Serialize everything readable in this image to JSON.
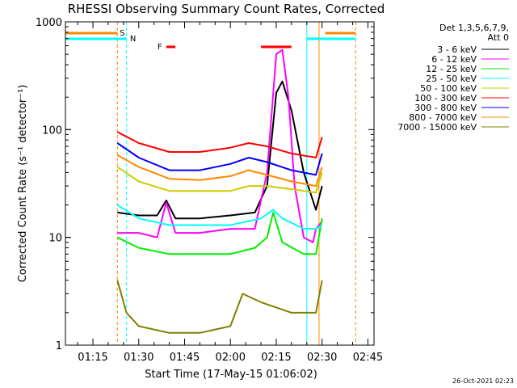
{
  "chart_data": {
    "type": "line",
    "title": "RHESSI Observing Summary Count Rates, Corrected",
    "xlabel": "Start Time (17-May-15 01:06:02)",
    "ylabel": "Corrected Count Rate (s⁻¹ detector⁻¹)",
    "y_scale": "log",
    "ylim": [
      1,
      1000
    ],
    "xlim": [
      "01:06",
      "02:47"
    ],
    "y_ticks": [
      "1",
      "10",
      "100",
      "1000"
    ],
    "x_ticks": [
      "01:15",
      "01:30",
      "01:45",
      "02:00",
      "02:15",
      "02:30",
      "02:45"
    ],
    "legend_header": [
      "Det 1,3,5,6,7,9,",
      "Att 0"
    ],
    "legend_position": "right",
    "timestamp": "26-Oct-2021 02:23",
    "series": [
      {
        "name": "3 - 6 keV",
        "color": "#000000",
        "x": [
          "01:23",
          "01:30",
          "01:36",
          "01:39",
          "01:42",
          "01:50",
          "02:00",
          "02:08",
          "02:12",
          "02:15",
          "02:17",
          "02:20",
          "02:24",
          "02:28",
          "02:30"
        ],
        "values": [
          17,
          16,
          16,
          22,
          15,
          15,
          16,
          17,
          30,
          220,
          280,
          150,
          40,
          18,
          30
        ]
      },
      {
        "name": "6 - 12 keV",
        "color": "#ff00ff",
        "x": [
          "01:23",
          "01:30",
          "01:36",
          "01:39",
          "01:42",
          "01:50",
          "02:00",
          "02:08",
          "02:12",
          "02:15",
          "02:17",
          "02:19",
          "02:21",
          "02:24",
          "02:27",
          "02:28",
          "02:30"
        ],
        "values": [
          11,
          11,
          10,
          21,
          11,
          11,
          12,
          12,
          40,
          500,
          550,
          200,
          30,
          10,
          9,
          12,
          14
        ]
      },
      {
        "name": "12 - 25 keV",
        "color": "#00ee00",
        "x": [
          "01:23",
          "01:30",
          "01:40",
          "01:50",
          "02:00",
          "02:08",
          "02:12",
          "02:14",
          "02:17",
          "02:24",
          "02:28",
          "02:30"
        ],
        "values": [
          10,
          8,
          7,
          7,
          7,
          8,
          10,
          17,
          9,
          7,
          7,
          15
        ]
      },
      {
        "name": "25 - 50 keV",
        "color": "#00ffff",
        "x": [
          "01:23",
          "01:30",
          "01:40",
          "01:50",
          "02:00",
          "02:10",
          "02:14",
          "02:17",
          "02:24",
          "02:28",
          "02:30"
        ],
        "values": [
          20,
          15,
          13,
          13,
          13,
          15,
          18,
          15,
          12,
          12,
          13
        ]
      },
      {
        "name": "50 - 100 keV",
        "color": "#cccc00",
        "x": [
          "01:23",
          "01:30",
          "01:40",
          "01:50",
          "02:00",
          "02:06",
          "02:12",
          "02:20",
          "02:28",
          "02:30"
        ],
        "values": [
          45,
          33,
          27,
          27,
          27,
          30,
          30,
          28,
          26,
          40
        ]
      },
      {
        "name": "100 - 300 keV",
        "color": "#ff0000",
        "x": [
          "01:23",
          "01:30",
          "01:40",
          "01:50",
          "02:00",
          "02:06",
          "02:12",
          "02:20",
          "02:28",
          "02:30"
        ],
        "values": [
          95,
          75,
          62,
          62,
          68,
          75,
          70,
          60,
          55,
          85
        ]
      },
      {
        "name": "300 - 800 keV",
        "color": "#0000ff",
        "x": [
          "01:23",
          "01:30",
          "01:40",
          "01:50",
          "02:00",
          "02:06",
          "02:12",
          "02:20",
          "02:28",
          "02:30"
        ],
        "values": [
          75,
          55,
          42,
          42,
          48,
          55,
          50,
          42,
          38,
          60
        ]
      },
      {
        "name": "800 - 7000 keV",
        "color": "#ff8800",
        "x": [
          "01:23",
          "01:30",
          "01:40",
          "01:50",
          "02:00",
          "02:06",
          "02:12",
          "02:20",
          "02:28",
          "02:30"
        ],
        "values": [
          58,
          45,
          35,
          34,
          37,
          42,
          38,
          33,
          30,
          45
        ]
      },
      {
        "name": "7000 - 15000 keV",
        "color": "#808000",
        "x": [
          "01:23",
          "01:26",
          "01:30",
          "01:40",
          "01:50",
          "02:00",
          "02:04",
          "02:10",
          "02:20",
          "02:28",
          "02:30"
        ],
        "values": [
          4,
          2,
          1.5,
          1.3,
          1.3,
          1.5,
          3,
          2.5,
          2,
          2,
          4
        ]
      }
    ],
    "flags": [
      {
        "label": "S",
        "color": "#ff8800",
        "segments": [
          [
            "01:06",
            "01:23"
          ],
          [
            "02:31",
            "02:41"
          ]
        ]
      },
      {
        "label": "N",
        "color": "#00ffff",
        "segments": [
          [
            "01:06",
            "01:26"
          ],
          [
            "02:25",
            "02:41"
          ]
        ]
      },
      {
        "label": "F",
        "color": "#ff0000",
        "segments": [
          [
            "01:39",
            "01:42"
          ],
          [
            "02:10",
            "02:20"
          ]
        ]
      }
    ],
    "vlines": [
      {
        "x": "01:06",
        "color": "#00ffff",
        "style": "solid"
      },
      {
        "x": "01:23",
        "color": "#ff8800",
        "style": "dashed"
      },
      {
        "x": "01:26",
        "color": "#00ffff",
        "style": "dashed"
      },
      {
        "x": "02:25",
        "color": "#00ffff",
        "style": "solid"
      },
      {
        "x": "02:29",
        "color": "#ff8800",
        "style": "solid"
      },
      {
        "x": "02:41",
        "color": "#ff8800",
        "style": "dashed"
      }
    ]
  }
}
